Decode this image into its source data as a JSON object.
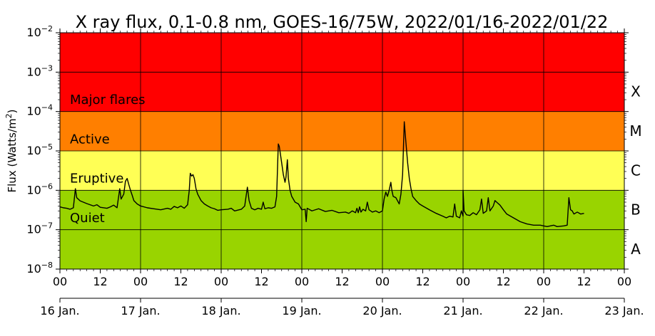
{
  "chart_data": {
    "type": "line",
    "title": "X ray flux, 0.1-0.8 nm, GOES-16/75W, 2022/01/16-2022/01/22",
    "ylabel_main": "Flux (Watts/m",
    "ylabel_sup": "2",
    "ylabel_close": ")",
    "y_scale": "log",
    "ylim": [
      1e-08,
      0.01
    ],
    "y_tick_labels": [
      {
        "exp": -8,
        "base": "10",
        "power": "−8"
      },
      {
        "exp": -7,
        "base": "10",
        "power": "−7"
      },
      {
        "exp": -6,
        "base": "10",
        "power": "−6"
      },
      {
        "exp": -5,
        "base": "10",
        "power": "−5"
      },
      {
        "exp": -4,
        "base": "10",
        "power": "−4"
      },
      {
        "exp": -3,
        "base": "10",
        "power": "−3"
      },
      {
        "exp": -2,
        "base": "10",
        "power": "−2"
      }
    ],
    "xlim_hours": [
      0,
      168
    ],
    "x_hour_ticks": [
      {
        "h": 0,
        "label": "00"
      },
      {
        "h": 12,
        "label": "12"
      },
      {
        "h": 24,
        "label": "00"
      },
      {
        "h": 36,
        "label": "12"
      },
      {
        "h": 48,
        "label": "00"
      },
      {
        "h": 60,
        "label": "12"
      },
      {
        "h": 72,
        "label": "00"
      },
      {
        "h": 84,
        "label": "12"
      },
      {
        "h": 96,
        "label": "00"
      },
      {
        "h": 108,
        "label": "12"
      },
      {
        "h": 120,
        "label": "00"
      },
      {
        "h": 132,
        "label": "12"
      },
      {
        "h": 144,
        "label": "00"
      },
      {
        "h": 156,
        "label": "12"
      },
      {
        "h": 168,
        "label": "00"
      }
    ],
    "x_date_ticks": [
      {
        "h": 0,
        "label": "16 Jan."
      },
      {
        "h": 24,
        "label": "17 Jan."
      },
      {
        "h": 48,
        "label": "18 Jan."
      },
      {
        "h": 72,
        "label": "19 Jan."
      },
      {
        "h": 96,
        "label": "20 Jan."
      },
      {
        "h": 120,
        "label": "21 Jan."
      },
      {
        "h": 144,
        "label": "22 Jan."
      },
      {
        "h": 168,
        "label": "23 Jan."
      }
    ],
    "grid": true,
    "bands": [
      {
        "from": 1e-08,
        "to": 1e-06,
        "color": "#99d400"
      },
      {
        "from": 1e-06,
        "to": 1e-05,
        "color": "#ffff55"
      },
      {
        "from": 1e-05,
        "to": 0.0001,
        "color": "#ff7f00"
      },
      {
        "from": 0.0001,
        "to": 0.01,
        "color": "#ff0000"
      }
    ],
    "activity_labels": [
      {
        "label": "Major flares",
        "at": 0.0002
      },
      {
        "label": "Active",
        "at": 2e-05
      },
      {
        "label": "Eruptive",
        "at": 2e-06
      },
      {
        "label": "Quiet",
        "at": 2e-07
      }
    ],
    "class_labels": [
      {
        "label": "X",
        "at": 0.00032
      },
      {
        "label": "M",
        "at": 3.2e-05
      },
      {
        "label": "C",
        "at": 3.2e-06
      },
      {
        "label": "B",
        "at": 3.2e-07
      },
      {
        "label": "A",
        "at": 3.2e-08
      }
    ],
    "series": [
      {
        "color": "#000000",
        "points": [
          [
            0,
            3.8e-07
          ],
          [
            1,
            3.6e-07
          ],
          [
            2,
            3.5e-07
          ],
          [
            3,
            3.3e-07
          ],
          [
            4,
            3.6e-07
          ],
          [
            4.6,
            1.1e-06
          ],
          [
            5,
            6.5e-07
          ],
          [
            6,
            5.4e-07
          ],
          [
            8,
            4.6e-07
          ],
          [
            10,
            4e-07
          ],
          [
            11,
            4.3e-07
          ],
          [
            12,
            3.7e-07
          ],
          [
            14,
            3.5e-07
          ],
          [
            15,
            3.8e-07
          ],
          [
            16,
            4.2e-07
          ],
          [
            17,
            3.6e-07
          ],
          [
            17.8,
            1.1e-06
          ],
          [
            18.2,
            6e-07
          ],
          [
            19,
            8e-07
          ],
          [
            19.5,
            1.7e-06
          ],
          [
            20,
            2e-06
          ],
          [
            20.5,
            1.4e-06
          ],
          [
            21,
            1e-06
          ],
          [
            21.5,
            7.5e-07
          ],
          [
            22,
            5.5e-07
          ],
          [
            23,
            4.5e-07
          ],
          [
            24,
            4e-07
          ],
          [
            26,
            3.6e-07
          ],
          [
            28,
            3.4e-07
          ],
          [
            30,
            3.2e-07
          ],
          [
            32,
            3.5e-07
          ],
          [
            33,
            3.3e-07
          ],
          [
            34,
            3.9e-07
          ],
          [
            35,
            3.6e-07
          ],
          [
            36,
            4e-07
          ],
          [
            37,
            3.5e-07
          ],
          [
            38,
            4.3e-07
          ],
          [
            38.5,
            1e-06
          ],
          [
            38.8,
            2.7e-06
          ],
          [
            39.2,
            2.3e-06
          ],
          [
            39.6,
            2.5e-06
          ],
          [
            40,
            2e-06
          ],
          [
            40.5,
            1.1e-06
          ],
          [
            41,
            8e-07
          ],
          [
            42,
            5.5e-07
          ],
          [
            43,
            4.5e-07
          ],
          [
            44,
            4e-07
          ],
          [
            45,
            3.6e-07
          ],
          [
            46,
            3.4e-07
          ],
          [
            47,
            3.1e-07
          ],
          [
            48,
            3.2e-07
          ],
          [
            50,
            3.3e-07
          ],
          [
            51,
            3.5e-07
          ],
          [
            52,
            3e-07
          ],
          [
            54,
            3.3e-07
          ],
          [
            55,
            4e-07
          ],
          [
            55.8,
            1.2e-06
          ],
          [
            56.3,
            5.5e-07
          ],
          [
            57,
            3.5e-07
          ],
          [
            58,
            3.2e-07
          ],
          [
            59,
            3.5e-07
          ],
          [
            60,
            3.3e-07
          ],
          [
            60.5,
            5e-07
          ],
          [
            61,
            3.4e-07
          ],
          [
            62,
            3.6e-07
          ],
          [
            63,
            3.5e-07
          ],
          [
            64,
            3.8e-07
          ],
          [
            64.5,
            7e-07
          ],
          [
            65,
            1.5e-05
          ],
          [
            65.3,
            1.3e-05
          ],
          [
            66,
            5e-06
          ],
          [
            66.5,
            2.5e-06
          ],
          [
            67,
            1.6e-06
          ],
          [
            67.3,
            2.2e-06
          ],
          [
            67.7,
            6e-06
          ],
          [
            68,
            2e-06
          ],
          [
            68.5,
            1e-06
          ],
          [
            69,
            7e-07
          ],
          [
            70,
            5e-07
          ],
          [
            71,
            4.5e-07
          ],
          [
            72,
            3.2e-07
          ],
          [
            73,
            3.3e-07
          ],
          [
            73.3,
            1.6e-07
          ],
          [
            73.6,
            3.5e-07
          ],
          [
            75,
            3e-07
          ],
          [
            77,
            3.4e-07
          ],
          [
            79,
            2.9e-07
          ],
          [
            81,
            3.1e-07
          ],
          [
            83,
            2.7e-07
          ],
          [
            85,
            2.8e-07
          ],
          [
            86,
            2.6e-07
          ],
          [
            87,
            3e-07
          ],
          [
            88,
            2.7e-07
          ],
          [
            88.4,
            3.5e-07
          ],
          [
            88.8,
            2.7e-07
          ],
          [
            89.2,
            3.8e-07
          ],
          [
            89.6,
            2.8e-07
          ],
          [
            90.2,
            3.3e-07
          ],
          [
            91,
            3e-07
          ],
          [
            91.5,
            5e-07
          ],
          [
            92,
            3.2e-07
          ],
          [
            93,
            2.8e-07
          ],
          [
            94,
            3e-07
          ],
          [
            95,
            2.7e-07
          ],
          [
            96,
            3e-07
          ],
          [
            96.5,
            6e-07
          ],
          [
            97,
            9e-07
          ],
          [
            97.5,
            7e-07
          ],
          [
            98,
            1e-06
          ],
          [
            98.5,
            1.6e-06
          ],
          [
            98.8,
            1e-06
          ],
          [
            99.2,
            7e-07
          ],
          [
            100,
            6.5e-07
          ],
          [
            101,
            4.5e-07
          ],
          [
            101.5,
            8e-07
          ],
          [
            102,
            2.5e-06
          ],
          [
            102.5,
            5.5e-05
          ],
          [
            103,
            1.6e-05
          ],
          [
            103.5,
            5e-06
          ],
          [
            104,
            2e-06
          ],
          [
            104.5,
            1.1e-06
          ],
          [
            105,
            7e-07
          ],
          [
            106,
            5.5e-07
          ],
          [
            107,
            4.5e-07
          ],
          [
            108,
            4e-07
          ],
          [
            110,
            3.2e-07
          ],
          [
            112,
            2.6e-07
          ],
          [
            114,
            2.2e-07
          ],
          [
            115,
            2e-07
          ],
          [
            116,
            2.2e-07
          ],
          [
            117,
            2.1e-07
          ],
          [
            117.5,
            4.5e-07
          ],
          [
            118,
            2.2e-07
          ],
          [
            119,
            2e-07
          ],
          [
            119.5,
            3e-07
          ],
          [
            120,
            2.2e-07
          ],
          [
            120,
            1e-06
          ],
          [
            120.3,
            3e-07
          ],
          [
            121,
            2.4e-07
          ],
          [
            122,
            2.3e-07
          ],
          [
            123,
            2.7e-07
          ],
          [
            124,
            2.4e-07
          ],
          [
            125,
            3.2e-07
          ],
          [
            125.5,
            6e-07
          ],
          [
            126,
            2.6e-07
          ],
          [
            127,
            3e-07
          ],
          [
            127.5,
            6.5e-07
          ],
          [
            128,
            3e-07
          ],
          [
            129,
            4e-07
          ],
          [
            129.5,
            5.5e-07
          ],
          [
            130,
            5e-07
          ],
          [
            131,
            4.2e-07
          ],
          [
            132,
            3.2e-07
          ],
          [
            133,
            2.5e-07
          ],
          [
            135,
            2e-07
          ],
          [
            137,
            1.6e-07
          ],
          [
            139,
            1.4e-07
          ],
          [
            141,
            1.3e-07
          ],
          [
            143,
            1.3e-07
          ],
          [
            145,
            1.2e-07
          ],
          [
            147,
            1.3e-07
          ],
          [
            148,
            1.2e-07
          ],
          [
            150,
            1.25e-07
          ],
          [
            151,
            1.3e-07
          ],
          [
            151.5,
            6.5e-07
          ],
          [
            152,
            3.2e-07
          ],
          [
            152.5,
            3e-07
          ],
          [
            153,
            2.5e-07
          ],
          [
            154,
            2.8e-07
          ],
          [
            155,
            2.5e-07
          ],
          [
            156,
            2.6e-07
          ]
        ]
      }
    ]
  }
}
